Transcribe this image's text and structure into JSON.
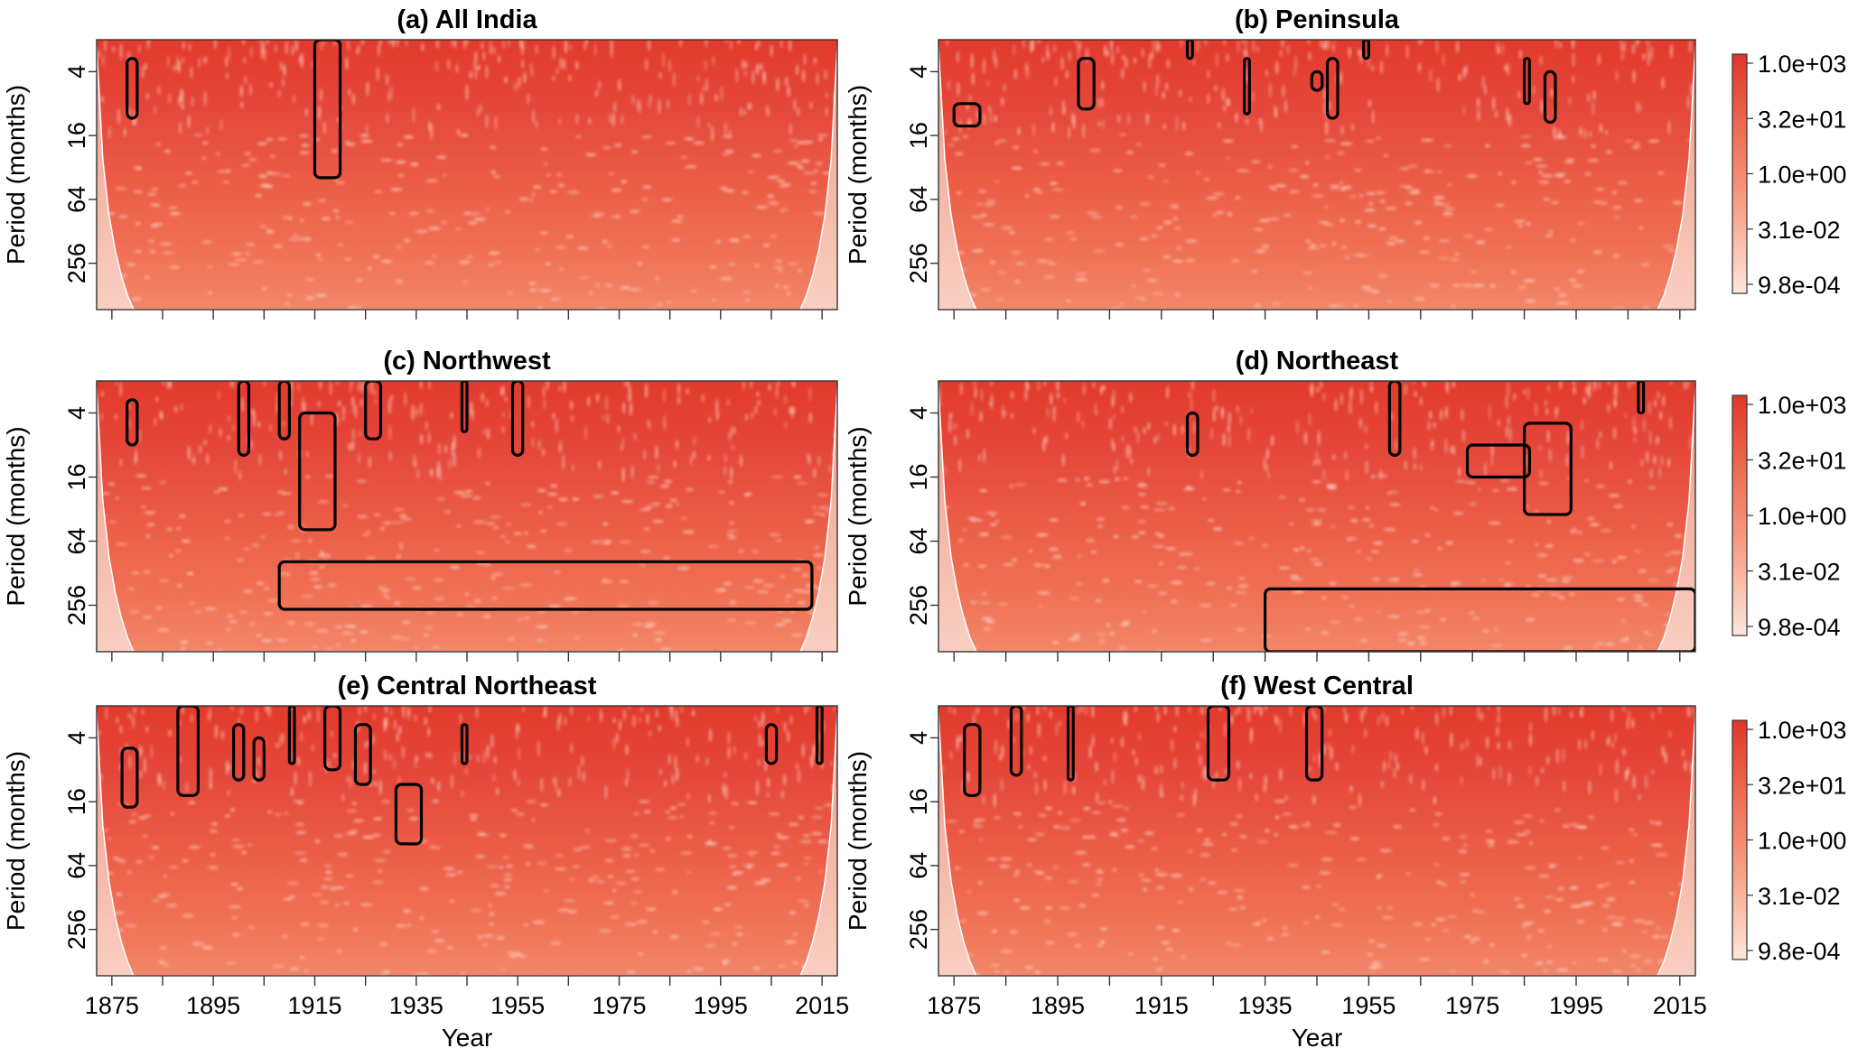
{
  "chart_data": {
    "type": "heatmap",
    "description": "Wavelet power spectra (6 panels) with significance contours and cone of influence",
    "x_axis": {
      "label": "Year",
      "range": [
        1872,
        2018
      ],
      "ticks_labeled": [
        1875,
        1895,
        1915,
        1935,
        1955,
        1975,
        1995,
        2015
      ],
      "tick_labels": [
        "1875",
        "1895",
        "1915",
        "1935",
        "1955",
        "1975",
        "1995",
        "2015"
      ],
      "minor_ticks": [
        1885,
        1905,
        1925,
        1945,
        1965,
        1985,
        2005
      ]
    },
    "y_axis": {
      "label": "Period (months)",
      "scale": "log2",
      "inverted": true,
      "range": [
        2,
        700
      ],
      "ticks": [
        4,
        16,
        64,
        256
      ],
      "tick_labels": [
        "4",
        "16",
        "64",
        "256"
      ]
    },
    "colorbar": {
      "scale": "log",
      "labels": [
        "1.0e+03",
        "3.2e+01",
        "1.0e+00",
        "3.1e-02",
        "9.8e-04"
      ],
      "values": [
        1000,
        32,
        1,
        0.031,
        0.00098
      ],
      "color_high": "#e0352a",
      "color_low": "#fde6dc"
    },
    "colors": {
      "high_power": "#e2412f",
      "mid_power": "#ee6e55",
      "low_power": "#f6b3a0",
      "outside_coi": "#f8c9bb",
      "contour": "#000000",
      "coi_line": "#ffffff"
    },
    "panels": [
      {
        "id": "a",
        "title": "(a) All India",
        "significant_regions": [
          {
            "x": [
              1878,
              1880
            ],
            "period": [
              3,
              11
            ]
          },
          {
            "x": [
              1915,
              1920
            ],
            "period": [
              2,
              40
            ]
          }
        ]
      },
      {
        "id": "b",
        "title": "(b) Peninsula",
        "significant_regions": [
          {
            "x": [
              1875,
              1880
            ],
            "period": [
              8,
              13
            ]
          },
          {
            "x": [
              1899,
              1902
            ],
            "period": [
              3,
              9
            ]
          },
          {
            "x": [
              1920,
              1921
            ],
            "period": [
              2,
              3
            ]
          },
          {
            "x": [
              1931,
              1932
            ],
            "period": [
              3,
              10
            ]
          },
          {
            "x": [
              1944,
              1946
            ],
            "period": [
              4,
              6
            ]
          },
          {
            "x": [
              1947,
              1949
            ],
            "period": [
              3,
              11
            ]
          },
          {
            "x": [
              1954,
              1955
            ],
            "period": [
              2,
              3
            ]
          },
          {
            "x": [
              1985,
              1986
            ],
            "period": [
              3,
              8
            ]
          },
          {
            "x": [
              1989,
              1991
            ],
            "period": [
              4,
              12
            ]
          }
        ]
      },
      {
        "id": "c",
        "title": "(c) Northwest",
        "significant_regions": [
          {
            "x": [
              1878,
              1880
            ],
            "period": [
              3,
              8
            ]
          },
          {
            "x": [
              1900,
              1902
            ],
            "period": [
              2,
              10
            ]
          },
          {
            "x": [
              1908,
              1910
            ],
            "period": [
              2,
              7
            ]
          },
          {
            "x": [
              1912,
              1919
            ],
            "period": [
              4,
              50
            ]
          },
          {
            "x": [
              1925,
              1928
            ],
            "period": [
              2,
              7
            ]
          },
          {
            "x": [
              1944,
              1945
            ],
            "period": [
              2,
              6
            ]
          },
          {
            "x": [
              1954,
              1956
            ],
            "period": [
              2,
              10
            ]
          },
          {
            "x": [
              1908,
              2013
            ],
            "period": [
              100,
              280
            ]
          }
        ]
      },
      {
        "id": "d",
        "title": "(d) Northeast",
        "significant_regions": [
          {
            "x": [
              1920,
              1922
            ],
            "period": [
              4,
              10
            ]
          },
          {
            "x": [
              1959,
              1961
            ],
            "period": [
              2,
              10
            ]
          },
          {
            "x": [
              1974,
              1986
            ],
            "period": [
              8,
              16
            ]
          },
          {
            "x": [
              1985,
              1994
            ],
            "period": [
              5,
              36
            ]
          },
          {
            "x": [
              2007,
              2008
            ],
            "period": [
              2,
              4
            ]
          },
          {
            "x": [
              1935,
              2018
            ],
            "period": [
              180,
              700
            ]
          }
        ]
      },
      {
        "id": "e",
        "title": "(e) Central Northeast",
        "significant_regions": [
          {
            "x": [
              1877,
              1880
            ],
            "period": [
              5,
              18
            ]
          },
          {
            "x": [
              1888,
              1892
            ],
            "period": [
              2,
              14
            ]
          },
          {
            "x": [
              1899,
              1901
            ],
            "period": [
              3,
              10
            ]
          },
          {
            "x": [
              1903,
              1905
            ],
            "period": [
              4,
              10
            ]
          },
          {
            "x": [
              1910,
              1911
            ],
            "period": [
              2,
              7
            ]
          },
          {
            "x": [
              1917,
              1920
            ],
            "period": [
              2,
              8
            ]
          },
          {
            "x": [
              1923,
              1926
            ],
            "period": [
              3,
              11
            ]
          },
          {
            "x": [
              1931,
              1936
            ],
            "period": [
              11,
              40
            ]
          },
          {
            "x": [
              1944,
              1945
            ],
            "period": [
              3,
              7
            ]
          },
          {
            "x": [
              2004,
              2006
            ],
            "period": [
              3,
              7
            ]
          },
          {
            "x": [
              2014,
              2015
            ],
            "period": [
              2,
              7
            ]
          }
        ]
      },
      {
        "id": "f",
        "title": "(f) West Central",
        "significant_regions": [
          {
            "x": [
              1877,
              1880
            ],
            "period": [
              3,
              14
            ]
          },
          {
            "x": [
              1886,
              1888
            ],
            "period": [
              2,
              9
            ]
          },
          {
            "x": [
              1897,
              1898
            ],
            "period": [
              2,
              10
            ]
          },
          {
            "x": [
              1924,
              1928
            ],
            "period": [
              2,
              10
            ]
          },
          {
            "x": [
              1943,
              1946
            ],
            "period": [
              2,
              10
            ]
          }
        ]
      }
    ]
  },
  "labels": {
    "ylabel": "Period (months)",
    "xlabel": "Year"
  }
}
